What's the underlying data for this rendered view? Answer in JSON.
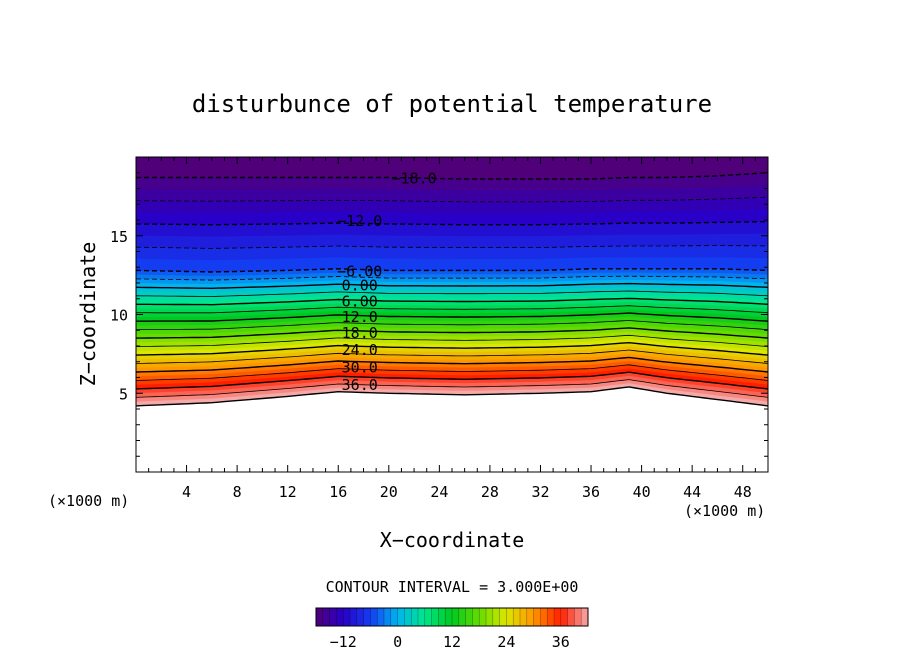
{
  "chart_data": {
    "type": "heatmap",
    "title": "disturbunce of potential temperature",
    "xlabel": "X−coordinate",
    "ylabel": "Z−coordinate",
    "x_unit": "(×1000 m)",
    "y_unit": "(×1000 m)",
    "xlim": [
      0,
      50
    ],
    "ylim": [
      0,
      20
    ],
    "x_ticks": [
      "4",
      "8",
      "12",
      "16",
      "20",
      "24",
      "28",
      "32",
      "36",
      "40",
      "44",
      "48"
    ],
    "y_ticks": [
      "5",
      "10",
      "15"
    ],
    "contour_interval_label": "CONTOUR INTERVAL = 3.000E+00",
    "contour_labels": [
      {
        "text": "−18.0",
        "z": 18.7
      },
      {
        "text": "−12.0",
        "z": 16.0
      },
      {
        "text": "−6.00",
        "z": 12.8
      },
      {
        "text": "0.00",
        "z": 11.9
      },
      {
        "text": "6.00",
        "z": 10.9
      },
      {
        "text": "12.0",
        "z": 9.9
      },
      {
        "text": "18.0",
        "z": 8.9
      },
      {
        "text": "24.0",
        "z": 7.8
      },
      {
        "text": "30.0",
        "z": 6.7
      },
      {
        "text": "36.0",
        "z": 5.6
      }
    ],
    "colorbar": {
      "range": [
        -18,
        42
      ],
      "ticks": [
        "−12",
        "0",
        "12",
        "24",
        "36"
      ]
    },
    "levels_z_at_x": {
      "x": [
        0,
        6,
        12,
        16,
        20,
        26,
        32,
        36,
        39,
        42,
        46,
        50
      ],
      "min_minus18": [
        18.7,
        18.7,
        18.7,
        18.7,
        18.7,
        18.6,
        18.6,
        18.6,
        18.7,
        18.7,
        18.8,
        19.0
      ],
      "minus6": [
        12.8,
        12.7,
        12.8,
        12.9,
        12.8,
        12.8,
        12.8,
        12.9,
        12.9,
        12.9,
        12.9,
        12.8
      ],
      "plus42": [
        4.2,
        4.4,
        4.8,
        5.1,
        5.0,
        4.9,
        5.0,
        5.1,
        5.4,
        5.0,
        4.6,
        4.2
      ]
    }
  }
}
